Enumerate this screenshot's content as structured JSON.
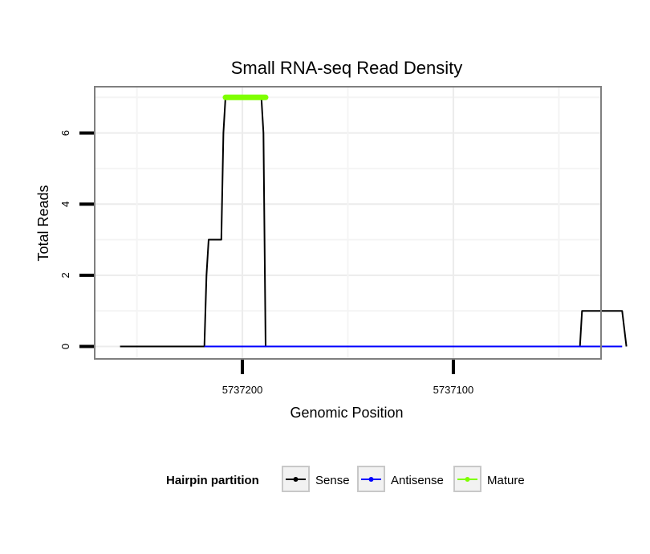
{
  "chart_data": {
    "type": "line",
    "title": "Small RNA-seq Read Density",
    "xlabel": "Genomic Position",
    "ylabel": "Total Reads",
    "x_reversed": true,
    "xlim": [
      5737270,
      5737030
    ],
    "ylim": [
      -0.35,
      7.3
    ],
    "x_ticks": [
      5737200,
      5737100
    ],
    "x_tick_labels": [
      "5737200",
      "5737100"
    ],
    "y_ticks": [
      0,
      2,
      4,
      6
    ],
    "y_tick_labels": [
      "0",
      "2",
      "4",
      "6"
    ],
    "grid": true,
    "legend": {
      "title": "Hairpin partition",
      "position": "bottom",
      "entries": [
        {
          "name": "Sense",
          "color": "#000000"
        },
        {
          "name": "Antisense",
          "color": "#0000ff"
        },
        {
          "name": "Mature",
          "color": "#7fff00"
        }
      ]
    },
    "series": [
      {
        "name": "Sense",
        "color": "#000000",
        "x": [
          5737258,
          5737218,
          5737217,
          5737216,
          5737210,
          5737209,
          5737208,
          5737191,
          5737190,
          5737189,
          5737040,
          5737039,
          5737038,
          5737020,
          5737018
        ],
        "y": [
          0,
          0,
          2,
          3,
          3,
          6,
          7,
          7,
          6,
          0,
          0,
          1,
          1,
          1,
          0
        ]
      },
      {
        "name": "Antisense",
        "color": "#0000ff",
        "x": [
          5737218,
          5737189,
          5737039,
          5737020
        ],
        "y": [
          0,
          0,
          0,
          0
        ]
      },
      {
        "name": "Mature",
        "color": "#7fff00",
        "x": [
          5737208,
          5737189
        ],
        "y": [
          7,
          7
        ]
      }
    ]
  }
}
